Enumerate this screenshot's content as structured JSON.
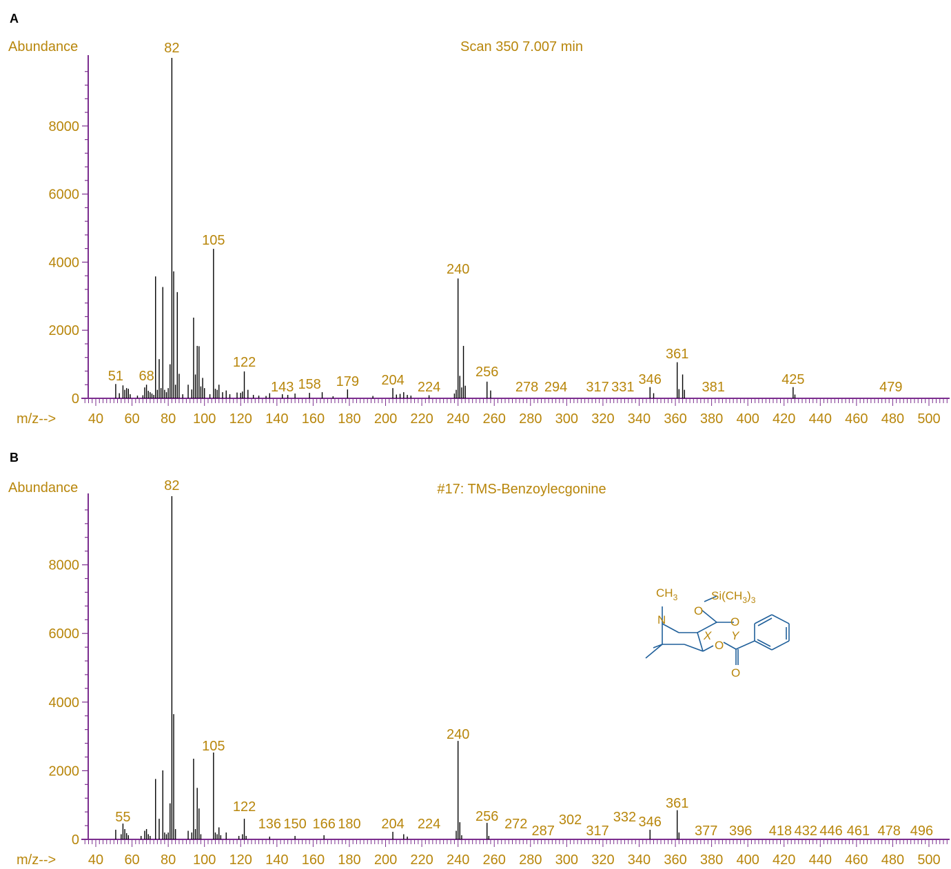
{
  "colors": {
    "label": "#b8860b",
    "axis": "#7b2d8e",
    "peak": "#000000",
    "structure": "#1f5f9a"
  },
  "chart_data": [
    {
      "type": "bar",
      "panel_label": "A",
      "title": "Scan 350 7.007 min",
      "ylabel": "Abundance",
      "xlabel": "m/z-->",
      "xlim": [
        35,
        512
      ],
      "ylim": [
        0,
        10000
      ],
      "y_ticks": [
        "0",
        "2000",
        "4000",
        "6000",
        "8000"
      ],
      "x_ticks": [
        "40",
        "60",
        "80",
        "100",
        "120",
        "140",
        "160",
        "180",
        "200",
        "220",
        "240",
        "260",
        "280",
        "300",
        "320",
        "340",
        "360",
        "380",
        "400",
        "420",
        "440",
        "460",
        "480",
        "500"
      ],
      "peaks": [
        [
          51,
          420
        ],
        [
          53,
          150
        ],
        [
          55,
          380
        ],
        [
          56,
          250
        ],
        [
          57,
          300
        ],
        [
          58,
          280
        ],
        [
          59,
          120
        ],
        [
          63,
          80
        ],
        [
          66,
          90
        ],
        [
          67,
          320
        ],
        [
          68,
          400
        ],
        [
          69,
          220
        ],
        [
          70,
          180
        ],
        [
          71,
          140
        ],
        [
          72,
          100
        ],
        [
          73,
          3580
        ],
        [
          74,
          250
        ],
        [
          75,
          1150
        ],
        [
          76,
          300
        ],
        [
          77,
          3270
        ],
        [
          78,
          250
        ],
        [
          79,
          180
        ],
        [
          80,
          300
        ],
        [
          81,
          1000
        ],
        [
          82,
          10000
        ],
        [
          83,
          3730
        ],
        [
          84,
          400
        ],
        [
          85,
          3120
        ],
        [
          86,
          720
        ],
        [
          88,
          120
        ],
        [
          91,
          400
        ],
        [
          93,
          260
        ],
        [
          94,
          2370
        ],
        [
          95,
          700
        ],
        [
          96,
          1540
        ],
        [
          97,
          1530
        ],
        [
          98,
          350
        ],
        [
          99,
          600
        ],
        [
          100,
          300
        ],
        [
          103,
          120
        ],
        [
          105,
          4390
        ],
        [
          106,
          280
        ],
        [
          107,
          250
        ],
        [
          108,
          400
        ],
        [
          110,
          180
        ],
        [
          112,
          230
        ],
        [
          114,
          120
        ],
        [
          118,
          170
        ],
        [
          120,
          160
        ],
        [
          121,
          200
        ],
        [
          122,
          790
        ],
        [
          124,
          250
        ],
        [
          127,
          100
        ],
        [
          130,
          80
        ],
        [
          134,
          70
        ],
        [
          136,
          150
        ],
        [
          143,
          120
        ],
        [
          146,
          100
        ],
        [
          150,
          140
        ],
        [
          158,
          160
        ],
        [
          165,
          180
        ],
        [
          171,
          60
        ],
        [
          179,
          260
        ],
        [
          193,
          70
        ],
        [
          204,
          300
        ],
        [
          206,
          110
        ],
        [
          208,
          130
        ],
        [
          210,
          180
        ],
        [
          212,
          100
        ],
        [
          214,
          80
        ],
        [
          224,
          90
        ],
        [
          238,
          140
        ],
        [
          239,
          250
        ],
        [
          240,
          3520
        ],
        [
          241,
          660
        ],
        [
          242,
          320
        ],
        [
          243,
          1540
        ],
        [
          244,
          370
        ],
        [
          256,
          490
        ],
        [
          258,
          230
        ],
        [
          346,
          330
        ],
        [
          348,
          150
        ],
        [
          361,
          1060
        ],
        [
          362,
          270
        ],
        [
          364,
          700
        ],
        [
          365,
          250
        ],
        [
          425,
          330
        ],
        [
          426,
          110
        ]
      ],
      "annotations": [
        {
          "mz": 51,
          "label": "51"
        },
        {
          "mz": 68,
          "label": "68"
        },
        {
          "mz": 82,
          "label": "82"
        },
        {
          "mz": 105,
          "label": "105"
        },
        {
          "mz": 122,
          "label": "122"
        },
        {
          "mz": 143,
          "label": "143"
        },
        {
          "mz": 158,
          "label": "158"
        },
        {
          "mz": 179,
          "label": "179"
        },
        {
          "mz": 204,
          "label": "204"
        },
        {
          "mz": 224,
          "label": "224"
        },
        {
          "mz": 240,
          "label": "240"
        },
        {
          "mz": 256,
          "label": "256"
        },
        {
          "mz": 278,
          "label": "278"
        },
        {
          "mz": 294,
          "label": "294"
        },
        {
          "mz": 317,
          "label": "317"
        },
        {
          "mz": 331,
          "label": "331"
        },
        {
          "mz": 346,
          "label": "346"
        },
        {
          "mz": 361,
          "label": "361"
        },
        {
          "mz": 381,
          "label": "381"
        },
        {
          "mz": 425,
          "label": "425"
        },
        {
          "mz": 479,
          "label": "479"
        }
      ]
    },
    {
      "type": "bar",
      "panel_label": "B",
      "title": "#17: TMS-Benzoylecgonine",
      "ylabel": "Abundance",
      "xlabel": "m/z-->",
      "xlim": [
        35,
        512
      ],
      "ylim": [
        0,
        10000
      ],
      "y_ticks": [
        "0",
        "2000",
        "4000",
        "6000",
        "8000"
      ],
      "x_ticks": [
        "40",
        "60",
        "80",
        "100",
        "120",
        "140",
        "160",
        "180",
        "200",
        "220",
        "240",
        "260",
        "280",
        "300",
        "320",
        "340",
        "360",
        "380",
        "400",
        "420",
        "440",
        "460",
        "480",
        "500"
      ],
      "peaks": [
        [
          51,
          280
        ],
        [
          54,
          150
        ],
        [
          55,
          460
        ],
        [
          56,
          300
        ],
        [
          57,
          180
        ],
        [
          58,
          120
        ],
        [
          65,
          100
        ],
        [
          67,
          250
        ],
        [
          68,
          300
        ],
        [
          69,
          150
        ],
        [
          70,
          100
        ],
        [
          73,
          1760
        ],
        [
          75,
          600
        ],
        [
          77,
          2010
        ],
        [
          78,
          200
        ],
        [
          79,
          150
        ],
        [
          80,
          200
        ],
        [
          81,
          1050
        ],
        [
          82,
          10000
        ],
        [
          83,
          3650
        ],
        [
          84,
          300
        ],
        [
          91,
          250
        ],
        [
          93,
          200
        ],
        [
          94,
          2350
        ],
        [
          95,
          300
        ],
        [
          96,
          1500
        ],
        [
          97,
          900
        ],
        [
          98,
          150
        ],
        [
          105,
          2530
        ],
        [
          106,
          200
        ],
        [
          107,
          150
        ],
        [
          108,
          350
        ],
        [
          109,
          120
        ],
        [
          112,
          200
        ],
        [
          119,
          100
        ],
        [
          121,
          150
        ],
        [
          122,
          600
        ],
        [
          123,
          100
        ],
        [
          136,
          80
        ],
        [
          150,
          100
        ],
        [
          166,
          120
        ],
        [
          204,
          220
        ],
        [
          210,
          150
        ],
        [
          212,
          80
        ],
        [
          239,
          250
        ],
        [
          240,
          2870
        ],
        [
          241,
          500
        ],
        [
          242,
          120
        ],
        [
          256,
          480
        ],
        [
          257,
          100
        ],
        [
          346,
          280
        ],
        [
          361,
          850
        ],
        [
          362,
          200
        ]
      ],
      "annotations": [
        {
          "mz": 55,
          "label": "55"
        },
        {
          "mz": 82,
          "label": "82"
        },
        {
          "mz": 105,
          "label": "105"
        },
        {
          "mz": 122,
          "label": "122"
        },
        {
          "mz": 136,
          "label": "136"
        },
        {
          "mz": 150,
          "label": "150"
        },
        {
          "mz": 166,
          "label": "166"
        },
        {
          "mz": 180,
          "label": "180"
        },
        {
          "mz": 204,
          "label": "204"
        },
        {
          "mz": 224,
          "label": "224"
        },
        {
          "mz": 240,
          "label": "240"
        },
        {
          "mz": 256,
          "label": "256"
        },
        {
          "mz": 272,
          "label": "272"
        },
        {
          "mz": 287,
          "label": "287"
        },
        {
          "mz": 302,
          "label": "302"
        },
        {
          "mz": 317,
          "label": "317"
        },
        {
          "mz": 332,
          "label": "332"
        },
        {
          "mz": 346,
          "label": "346"
        },
        {
          "mz": 361,
          "label": "361"
        },
        {
          "mz": 377,
          "label": "377"
        },
        {
          "mz": 396,
          "label": "396"
        },
        {
          "mz": 418,
          "label": "418"
        },
        {
          "mz": 432,
          "label": "432"
        },
        {
          "mz": 446,
          "label": "446"
        },
        {
          "mz": 461,
          "label": "461"
        },
        {
          "mz": 478,
          "label": "478"
        },
        {
          "mz": 496,
          "label": "496"
        }
      ],
      "structure": {
        "ch3": "CH",
        "ch3_sub": "3",
        "n": "N",
        "o_tms": "O",
        "si_group": "Si(CH",
        "si_sub": "3",
        "si_close": ")",
        "si_outer_sub": "3",
        "carbonyl_o1": "O",
        "ester_o": "O",
        "carbonyl_o2": "O",
        "bond_x": "X",
        "bond_y": "Y"
      }
    }
  ]
}
